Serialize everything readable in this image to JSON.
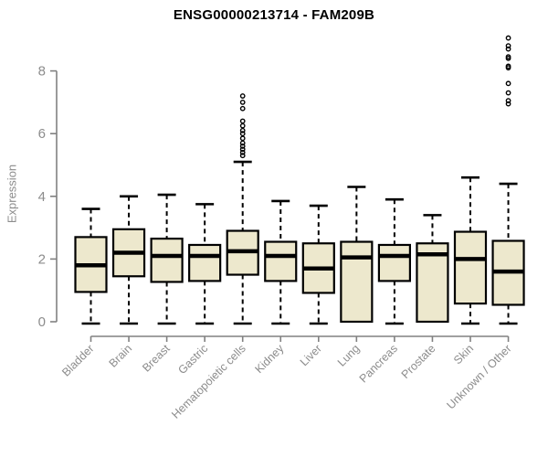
{
  "chart_data": {
    "type": "boxplot",
    "title": "ENSG00000213714 - FAM209B",
    "ylabel": "Expression",
    "xlabel": "",
    "ylim": [
      0,
      8
    ],
    "yticks": [
      0,
      2,
      4,
      6,
      8
    ],
    "grid": false,
    "legend": false,
    "categories": [
      "Bladder",
      "Brain",
      "Breast",
      "Gastric",
      "Hematopoietic cells",
      "Kidney",
      "Liver",
      "Lung",
      "Pancreas",
      "Prostate",
      "Skin",
      "Unknown / Other"
    ],
    "series": [
      {
        "name": "Bladder",
        "whisker_low": 0,
        "q1": 0.95,
        "median": 1.8,
        "q3": 2.7,
        "whisker_high": 3.6,
        "outliers": []
      },
      {
        "name": "Brain",
        "whisker_low": 0,
        "q1": 1.45,
        "median": 2.2,
        "q3": 2.95,
        "whisker_high": 4.0,
        "outliers": []
      },
      {
        "name": "Breast",
        "whisker_low": 0,
        "q1": 1.27,
        "median": 2.1,
        "q3": 2.65,
        "whisker_high": 4.05,
        "outliers": []
      },
      {
        "name": "Gastric",
        "whisker_low": 0,
        "q1": 1.3,
        "median": 2.1,
        "q3": 2.45,
        "whisker_high": 3.75,
        "outliers": []
      },
      {
        "name": "Hematopoietic cells",
        "whisker_low": 0,
        "q1": 1.5,
        "median": 2.25,
        "q3": 2.9,
        "whisker_high": 5.1,
        "outliers": [
          5.3,
          5.4,
          5.5,
          5.6,
          5.7,
          5.85,
          6.0,
          6.1,
          6.25,
          6.4,
          6.8,
          7.0,
          7.2
        ]
      },
      {
        "name": "Kidney",
        "whisker_low": 0,
        "q1": 1.3,
        "median": 2.1,
        "q3": 2.55,
        "whisker_high": 3.85,
        "outliers": []
      },
      {
        "name": "Liver",
        "whisker_low": 0,
        "q1": 0.92,
        "median": 1.7,
        "q3": 2.5,
        "whisker_high": 3.7,
        "outliers": []
      },
      {
        "name": "Lung",
        "whisker_low": 0,
        "q1": 0.0,
        "median": 2.05,
        "q3": 2.55,
        "whisker_high": 4.3,
        "outliers": []
      },
      {
        "name": "Pancreas",
        "whisker_low": 0,
        "q1": 1.3,
        "median": 2.1,
        "q3": 2.45,
        "whisker_high": 3.9,
        "outliers": []
      },
      {
        "name": "Prostate",
        "whisker_low": 0,
        "q1": 0.0,
        "median": 2.15,
        "q3": 2.5,
        "whisker_high": 3.4,
        "outliers": []
      },
      {
        "name": "Skin",
        "whisker_low": 0,
        "q1": 0.58,
        "median": 2.0,
        "q3": 2.87,
        "whisker_high": 4.6,
        "outliers": []
      },
      {
        "name": "Unknown / Other",
        "whisker_low": 0,
        "q1": 0.54,
        "median": 1.6,
        "q3": 2.58,
        "whisker_high": 4.4,
        "outliers": [
          6.95,
          7.05,
          7.3,
          7.6,
          8.1,
          8.15,
          8.4,
          8.45,
          8.7,
          8.8,
          9.05
        ]
      }
    ],
    "colors": {
      "box_fill": "#EDE8CD",
      "box_stroke": "#000000",
      "median": "#000000",
      "whisker": "#000000",
      "axis": "#808080",
      "tick_label": "#8c8c8c",
      "title": "#000000",
      "background": "#FFFFFF"
    }
  }
}
